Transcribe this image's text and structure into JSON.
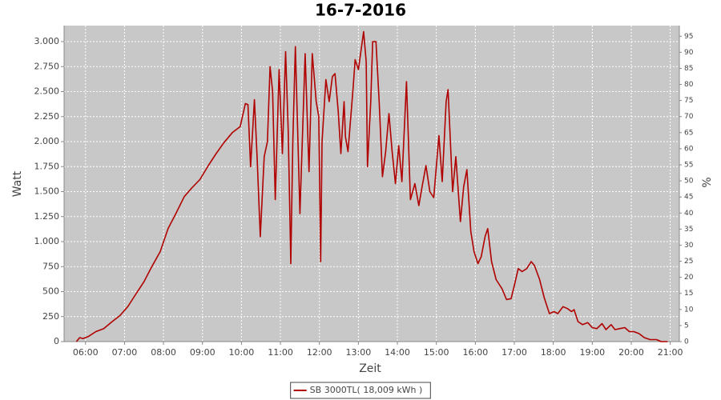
{
  "chart_data": {
    "type": "line",
    "title": "16-7-2016",
    "x_label": "Zeit",
    "y_label": "Watt",
    "y2_label": "%",
    "grid": true,
    "legend": "bottom",
    "xlim": [
      "05:27",
      "21:14"
    ],
    "xticks": [
      "06:00",
      "07:00",
      "08:00",
      "09:00",
      "10:00",
      "11:00",
      "12:00",
      "13:00",
      "14:00",
      "15:00",
      "16:00",
      "17:00",
      "18:00",
      "19:00",
      "20:00",
      "21:00"
    ],
    "ylim": [
      0,
      3160
    ],
    "yticks": [
      0,
      250,
      500,
      750,
      {
        "value": 1000,
        "label": "1.000"
      },
      {
        "value": 1250,
        "label": "1.250"
      },
      {
        "value": 1500,
        "label": "1.500"
      },
      {
        "value": 1750,
        "label": "1.750"
      },
      {
        "value": 2000,
        "label": "2.000"
      },
      {
        "value": 2250,
        "label": "2.250"
      },
      {
        "value": 2500,
        "label": "2.500"
      },
      {
        "value": 2750,
        "label": "2.750"
      },
      {
        "value": 3000,
        "label": "3.000"
      }
    ],
    "y2lim": [
      0,
      98.3
    ],
    "y2ticks": [
      0,
      5,
      10,
      15,
      20,
      25,
      30,
      35,
      40,
      45,
      50,
      55,
      60,
      65,
      70,
      75,
      80,
      85,
      90,
      95
    ],
    "x": [
      "05:46",
      "05:51",
      "05:56",
      "06:04",
      "06:16",
      "06:28",
      "06:41",
      "06:53",
      "07:05",
      "07:18",
      "07:30",
      "07:42",
      "07:55",
      "08:07",
      "08:19",
      "08:32",
      "08:44",
      "08:56",
      "09:09",
      "09:21",
      "09:33",
      "09:46",
      "09:58",
      "10:06",
      "10:10",
      "10:14",
      "10:20",
      "10:24",
      "10:29",
      "10:35",
      "10:40",
      "10:44",
      "10:48",
      "10:52",
      "10:58",
      "11:03",
      "11:08",
      "11:12",
      "11:16",
      "11:19",
      "11:23",
      "11:30",
      "11:38",
      "11:44",
      "11:49",
      "11:55",
      "11:59",
      "12:02",
      "12:04",
      "12:10",
      "12:15",
      "12:20",
      "12:24",
      "12:29",
      "12:33",
      "12:38",
      "12:40",
      "12:44",
      "12:52",
      "12:55",
      "13:00",
      "13:08",
      "13:12",
      "13:14",
      "13:19",
      "13:22",
      "13:27",
      "13:32",
      "13:37",
      "13:42",
      "13:47",
      "13:52",
      "13:57",
      "14:02",
      "14:07",
      "14:14",
      "14:20",
      "14:27",
      "14:33",
      "14:38",
      "14:44",
      "14:50",
      "14:56",
      "15:04",
      "15:09",
      "15:15",
      "15:18",
      "15:25",
      "15:30",
      "15:37",
      "15:42",
      "15:47",
      "15:53",
      "15:58",
      "16:04",
      "16:09",
      "16:15",
      "16:19",
      "16:25",
      "16:32",
      "16:41",
      "16:48",
      "16:55",
      "17:00",
      "17:06",
      "17:12",
      "17:19",
      "17:26",
      "17:31",
      "17:39",
      "17:46",
      "17:54",
      "18:01",
      "18:07",
      "18:15",
      "18:22",
      "18:28",
      "18:32",
      "18:38",
      "18:45",
      "18:53",
      "19:00",
      "19:07",
      "19:15",
      "19:21",
      "19:29",
      "19:35",
      "19:42",
      "19:50",
      "19:57",
      "20:04",
      "20:12",
      "20:20",
      "20:29",
      "20:39",
      "20:46",
      "20:56"
    ],
    "series": [
      {
        "name": "SB 3000TL( 18,009 kWh )",
        "color": "#b00000",
        "values": [
          0,
          40,
          30,
          50,
          100,
          130,
          200,
          260,
          350,
          480,
          600,
          750,
          900,
          1130,
          1280,
          1450,
          1540,
          1620,
          1760,
          1880,
          1990,
          2090,
          2150,
          2380,
          2370,
          1750,
          2420,
          1850,
          1050,
          1850,
          2000,
          2750,
          2500,
          1420,
          2720,
          1880,
          2900,
          2100,
          780,
          2000,
          2950,
          1280,
          2880,
          1700,
          2880,
          2400,
          2250,
          800,
          2000,
          2620,
          2400,
          2650,
          2680,
          2300,
          1880,
          2400,
          2050,
          1900,
          2550,
          2820,
          2720,
          3100,
          2800,
          1750,
          2400,
          3000,
          3000,
          2400,
          1650,
          1900,
          2280,
          1900,
          1580,
          1960,
          1600,
          2600,
          1420,
          1580,
          1360,
          1550,
          1760,
          1500,
          1440,
          2060,
          1600,
          2400,
          2520,
          1500,
          1850,
          1200,
          1550,
          1720,
          1100,
          900,
          780,
          850,
          1050,
          1130,
          800,
          620,
          530,
          420,
          430,
          560,
          730,
          700,
          730,
          800,
          760,
          620,
          440,
          280,
          300,
          280,
          350,
          330,
          300,
          320,
          200,
          170,
          190,
          140,
          130,
          180,
          120,
          170,
          120,
          130,
          140,
          100,
          100,
          80,
          40,
          20,
          20,
          0,
          0
        ]
      }
    ]
  }
}
